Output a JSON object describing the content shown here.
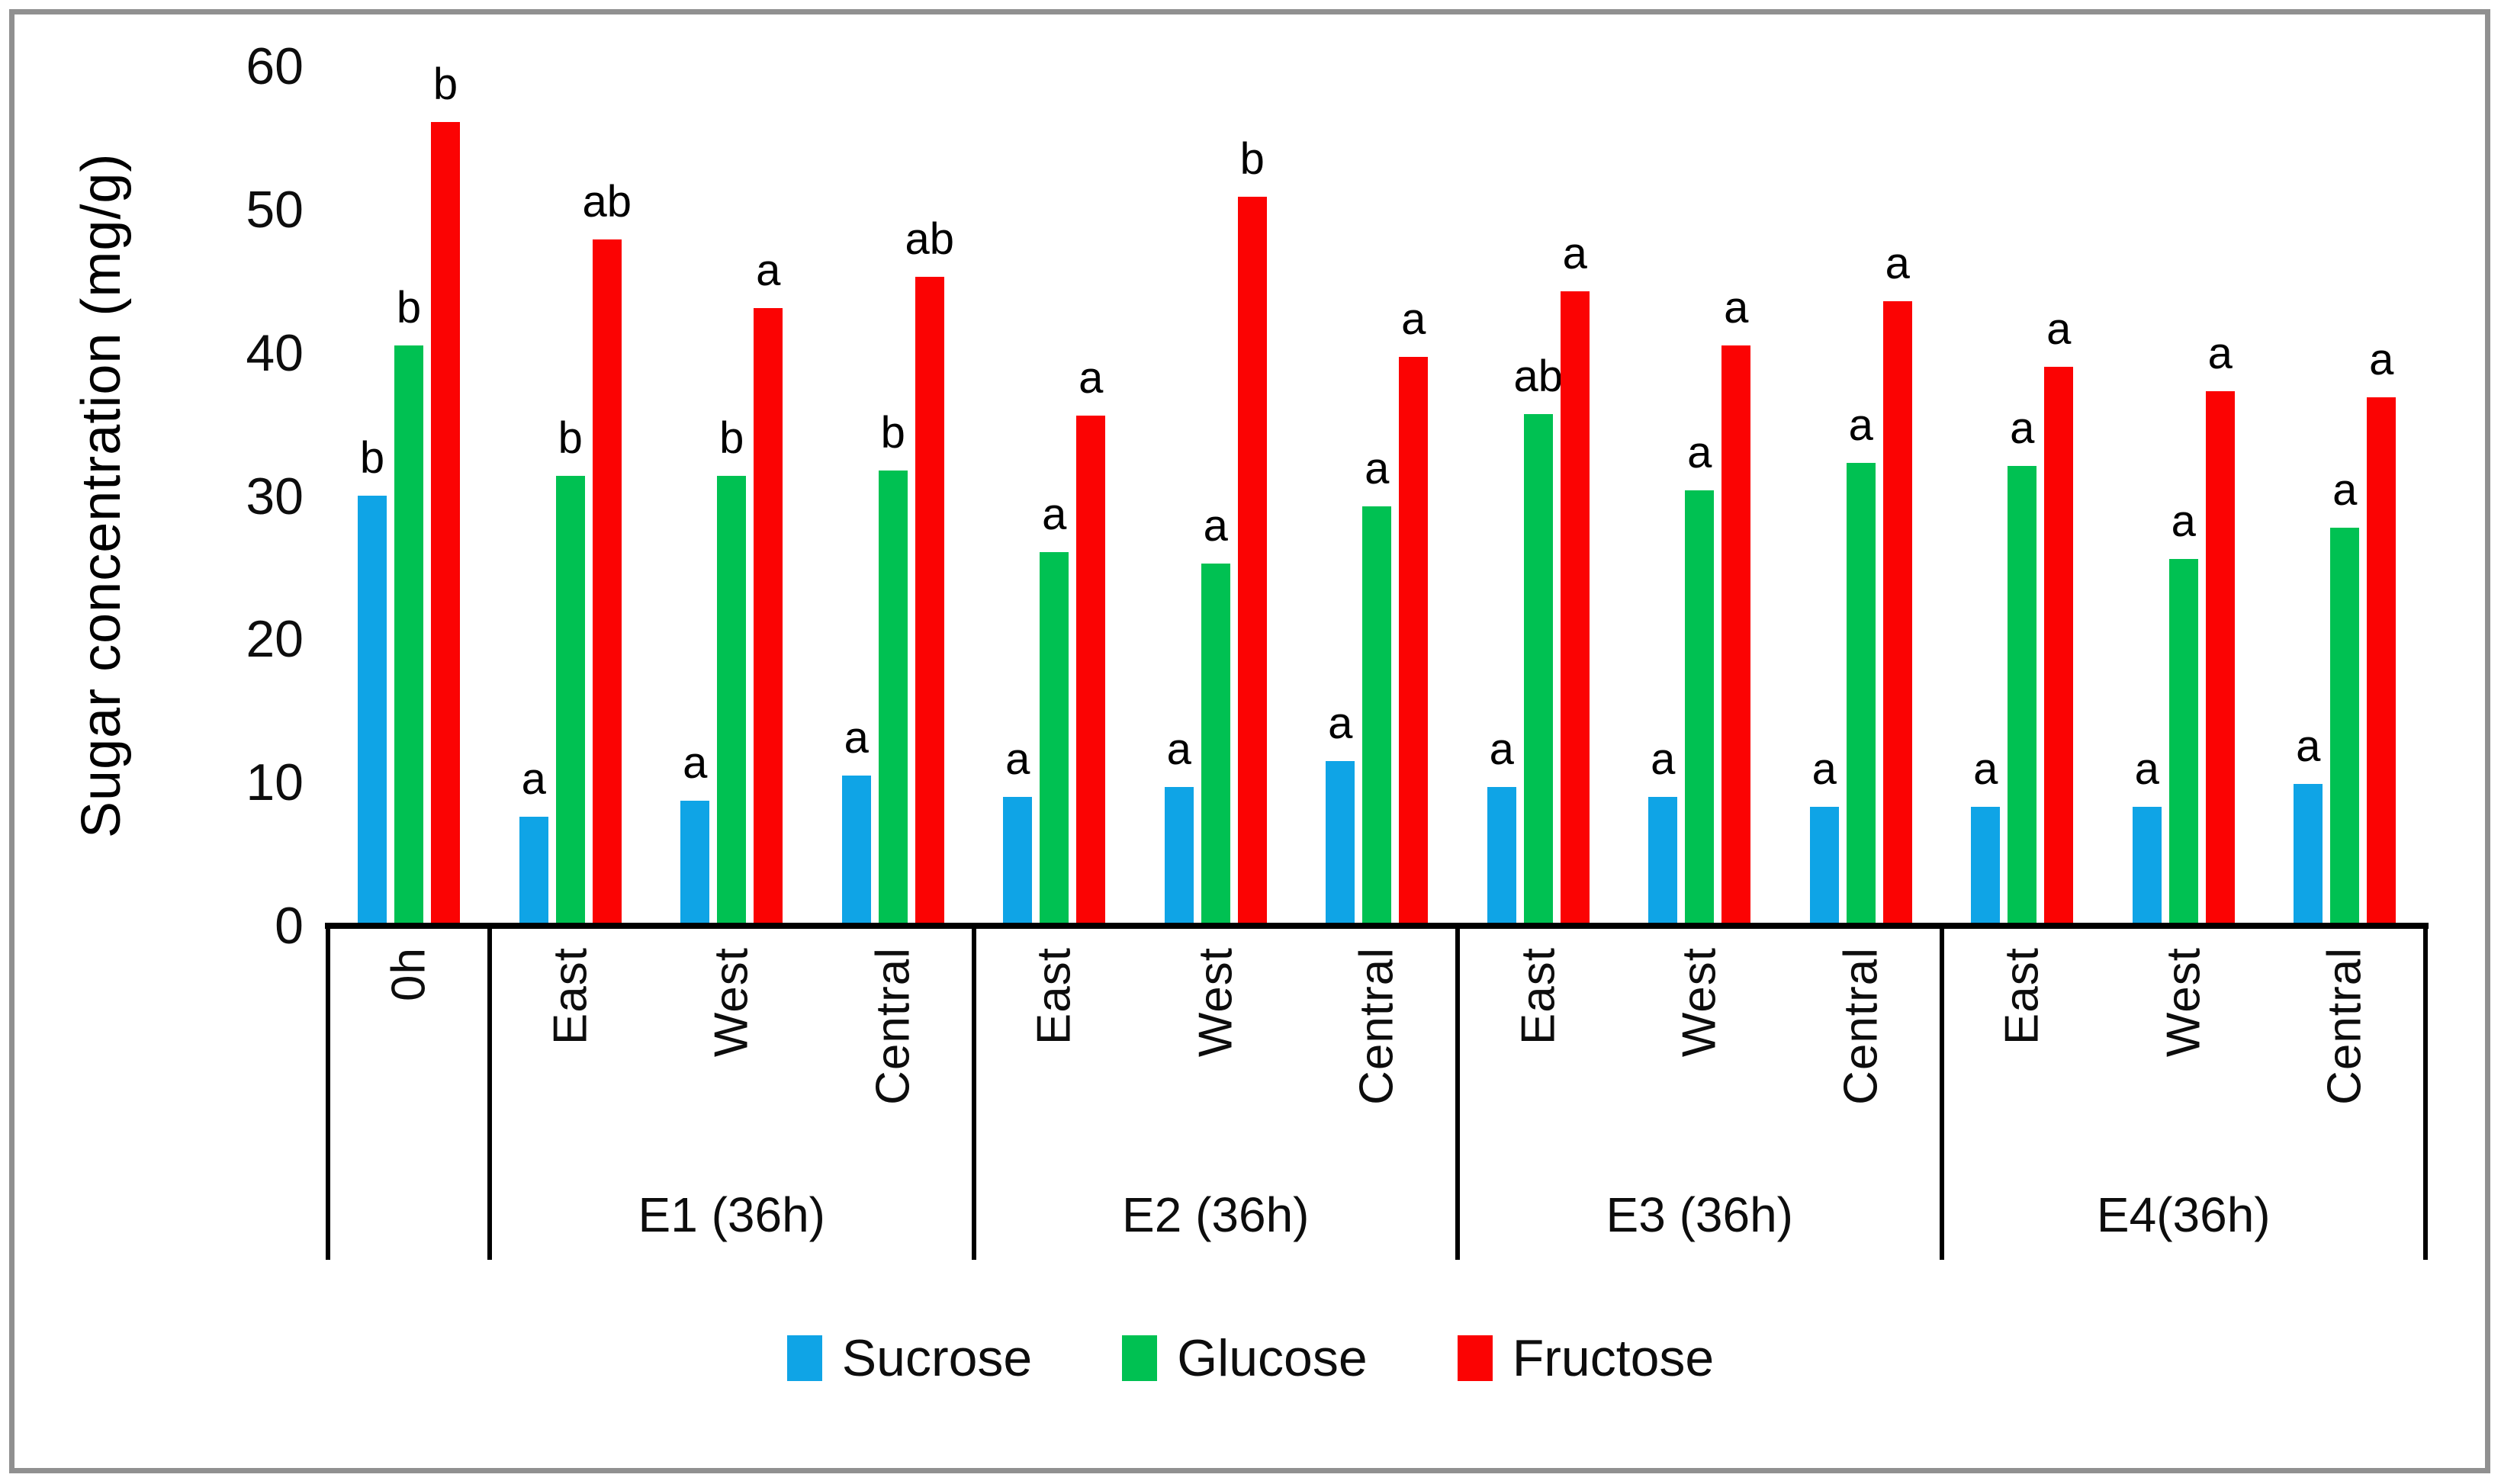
{
  "figure": {
    "background": "#ffffff",
    "border_color": "#909090"
  },
  "chart_data": {
    "type": "bar",
    "title": "",
    "ylabel": "Sugar concentration (mg/g)",
    "xlabel": "",
    "ylim": [
      0,
      60
    ],
    "yticks": [
      0,
      10,
      20,
      30,
      40,
      50,
      60
    ],
    "grid": false,
    "legend_position": "bottom",
    "series": [
      {
        "name": "Sucrose",
        "color": "#0FA4E6"
      },
      {
        "name": "Glucose",
        "color": "#00C152"
      },
      {
        "name": "Fructose",
        "color": "#FB0303"
      }
    ],
    "sections": [
      {
        "title": "",
        "groups": [
          {
            "label": "0h",
            "values": [
              29.9,
              40.4,
              56.0
            ],
            "letters": [
              "b",
              "b",
              "b"
            ]
          }
        ]
      },
      {
        "title": "E1 (36h)",
        "groups": [
          {
            "label": "East",
            "values": [
              7.5,
              31.3,
              47.8
            ],
            "letters": [
              "a",
              "b",
              "ab"
            ]
          },
          {
            "label": "West",
            "values": [
              8.6,
              31.3,
              43.0
            ],
            "letters": [
              "a",
              "b",
              "a"
            ]
          },
          {
            "label": "Central",
            "values": [
              10.4,
              31.7,
              45.2
            ],
            "letters": [
              "a",
              "b",
              "ab"
            ]
          }
        ]
      },
      {
        "title": "E2 (36h)",
        "groups": [
          {
            "label": "East",
            "values": [
              8.9,
              26.0,
              35.5
            ],
            "letters": [
              "a",
              "a",
              "a"
            ]
          },
          {
            "label": "West",
            "values": [
              9.6,
              25.2,
              50.8
            ],
            "letters": [
              "a",
              "a",
              "b"
            ]
          },
          {
            "label": "Central",
            "values": [
              11.4,
              29.2,
              39.6
            ],
            "letters": [
              "a",
              "a",
              "a"
            ]
          }
        ]
      },
      {
        "title": "E3 (36h)",
        "groups": [
          {
            "label": "East",
            "values": [
              9.6,
              35.6,
              44.2
            ],
            "letters": [
              "a",
              "ab",
              "a"
            ]
          },
          {
            "label": "West",
            "values": [
              8.9,
              30.3,
              40.4
            ],
            "letters": [
              "a",
              "a",
              "a"
            ]
          },
          {
            "label": "Central",
            "values": [
              8.2,
              32.2,
              43.5
            ],
            "letters": [
              "a",
              "a",
              "a"
            ]
          }
        ]
      },
      {
        "title": "E4(36h)",
        "groups": [
          {
            "label": "East",
            "values": [
              8.2,
              32.0,
              38.9
            ],
            "letters": [
              "a",
              "a",
              "a"
            ]
          },
          {
            "label": "West",
            "values": [
              8.2,
              25.5,
              37.2
            ],
            "letters": [
              "a",
              "a",
              "a"
            ]
          },
          {
            "label": "Central",
            "values": [
              9.8,
              27.7,
              36.8
            ],
            "letters": [
              "a",
              "a",
              "a"
            ]
          }
        ]
      }
    ]
  }
}
